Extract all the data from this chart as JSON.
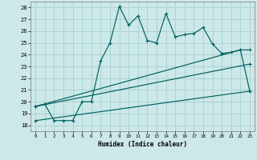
{
  "xlabel": "Humidex (Indice chaleur)",
  "xlim": [
    -0.5,
    23.5
  ],
  "ylim": [
    17.5,
    28.5
  ],
  "xticks": [
    0,
    1,
    2,
    3,
    4,
    5,
    6,
    7,
    8,
    9,
    10,
    11,
    12,
    13,
    14,
    15,
    16,
    17,
    18,
    19,
    20,
    21,
    22,
    23
  ],
  "yticks": [
    18,
    19,
    20,
    21,
    22,
    23,
    24,
    25,
    26,
    27,
    28
  ],
  "bg_color": "#cde8e8",
  "grid_color": "#aad4d4",
  "line_color": "#006060",
  "jagged": [
    [
      0,
      19.6
    ],
    [
      1,
      19.8
    ],
    [
      2,
      18.4
    ],
    [
      3,
      18.4
    ],
    [
      4,
      18.4
    ],
    [
      5,
      20.0
    ],
    [
      6,
      20.0
    ],
    [
      7,
      23.5
    ],
    [
      8,
      25.0
    ],
    [
      9,
      28.1
    ],
    [
      10,
      26.5
    ],
    [
      11,
      27.3
    ],
    [
      12,
      25.2
    ],
    [
      13,
      25.0
    ],
    [
      14,
      27.5
    ],
    [
      15,
      25.5
    ],
    [
      16,
      25.7
    ],
    [
      17,
      25.8
    ],
    [
      18,
      26.3
    ],
    [
      19,
      24.9
    ],
    [
      20,
      24.1
    ],
    [
      21,
      24.2
    ],
    [
      22,
      24.4
    ],
    [
      23,
      20.9
    ]
  ],
  "upper_linear": [
    [
      0,
      19.6
    ],
    [
      22,
      24.4
    ],
    [
      23,
      24.4
    ]
  ],
  "mid_linear": [
    [
      0,
      19.6
    ],
    [
      23,
      23.2
    ]
  ],
  "lower_linear": [
    [
      0,
      18.4
    ],
    [
      23,
      20.9
    ]
  ]
}
